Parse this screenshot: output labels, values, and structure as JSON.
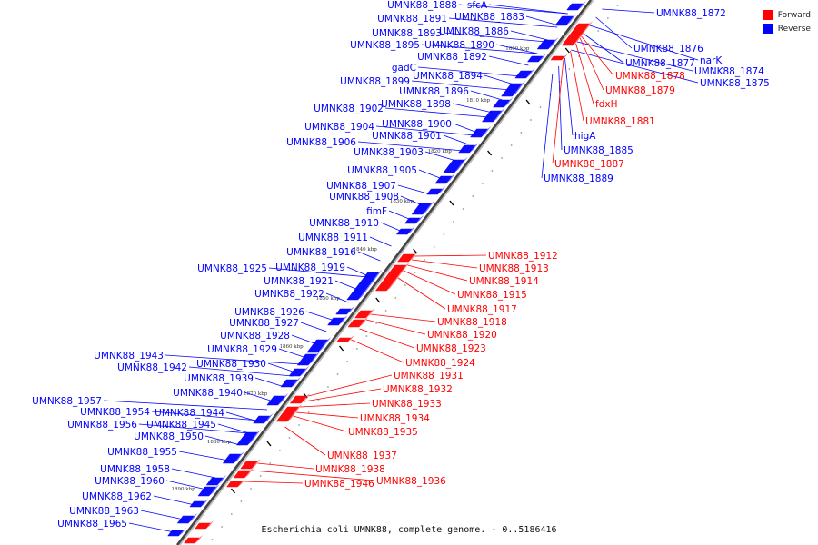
{
  "caption": "Escherichia coli UMNK88, complete genome. - 0..5186416",
  "legend": [
    {
      "label": "Forward",
      "color": "#ff0000"
    },
    {
      "label": "Reverse",
      "color": "#0000ff"
    }
  ],
  "colors": {
    "forward": "#ff0000",
    "reverse": "#0000ff",
    "backbone": "#444444"
  },
  "ticks": [
    "1800 kbp",
    "1810 kbp",
    "1820 kbp",
    "1830 kbp",
    "1840 kbp",
    "1850 kbp",
    "1860 kbp",
    "1870 kbp",
    "1880 kbp",
    "1890 kbp"
  ],
  "reverse_labels": [
    "UMNK88_1888",
    "sfcA",
    "UMNK88_1883",
    "UMNK88_1891",
    "UMNK88_1893",
    "UMNK88_1886",
    "UMNK88_1895",
    "UMNK88_1890",
    "UMNK88_1892",
    "gadC",
    "UMNK88_1894",
    "UMNK88_1899",
    "UMNK88_1896",
    "UMNK88_1898",
    "UMNK88_1902",
    "UMNK88_1900",
    "UMNK88_1904",
    "UMNK88_1901",
    "UMNK88_1906",
    "UMNK88_1903",
    "UMNK88_1905",
    "UMNK88_1907",
    "UMNK88_1908",
    "fimF",
    "UMNK88_1910",
    "UMNK88_1911",
    "UMNK88_1916",
    "UMNK88_1919",
    "UMNK88_1925",
    "UMNK88_1921",
    "UMNK88_1922",
    "UMNK88_1926",
    "UMNK88_1927",
    "UMNK88_1928",
    "UMNK88_1929",
    "UMNK88_1943",
    "UMNK88_1942",
    "UMNK88_1930",
    "UMNK88_1939",
    "UMNK88_1940",
    "UMNK88_1957",
    "UMNK88_1944",
    "UMNK88_1954",
    "UMNK88_1945",
    "UMNK88_1956",
    "UMNK88_1950",
    "UMNK88_1955",
    "UMNK88_1958",
    "UMNK88_1960",
    "UMNK88_1962",
    "UMNK88_1963",
    "UMNK88_1965"
  ],
  "right_blue_labels": [
    "UMNK88_1872",
    "UMNK88_1876",
    "narK",
    "UMNK88_1877",
    "UMNK88_1874",
    "UMNK88_1875",
    "higA",
    "UMNK88_1885",
    "UMNK88_1889"
  ],
  "forward_labels": [
    "UMNK88_1878",
    "UMNK88_1879",
    "fdxH",
    "UMNK88_1881",
    "UMNK88_1887",
    "UMNK88_1912",
    "UMNK88_1913",
    "UMNK88_1914",
    "UMNK88_1915",
    "UMNK88_1917",
    "UMNK88_1918",
    "UMNK88_1920",
    "UMNK88_1923",
    "UMNK88_1924",
    "UMNK88_1931",
    "UMNK88_1932",
    "UMNK88_1933",
    "UMNK88_1934",
    "UMNK88_1935",
    "UMNK88_1937",
    "UMNK88_1938",
    "UMNK88_1936",
    "UMNK88_1946"
  ]
}
